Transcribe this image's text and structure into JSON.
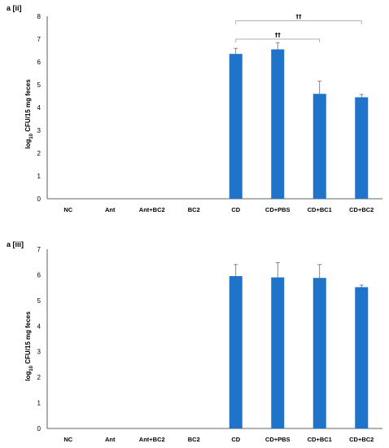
{
  "chart_data": [
    {
      "panel_label": "a [ii]",
      "type": "bar",
      "ylabel": "log10 CFU/15 mg feces",
      "ylabel_main": "log",
      "ylabel_sub": "10",
      "ylabel_rest": " CFU/15 mg feces",
      "ylim": [
        0,
        8
      ],
      "yticks": [
        "0",
        "1",
        "2",
        "3",
        "4",
        "5",
        "6",
        "7",
        "8"
      ],
      "categories": [
        "NC",
        "Ant",
        "Ant+BC2",
        "BC2",
        "CD",
        "CD+PBS",
        "CD+BC1",
        "CD+BC2"
      ],
      "values": [
        0,
        0,
        0,
        0,
        6.35,
        6.55,
        4.6,
        4.45
      ],
      "errors": [
        0,
        0,
        0,
        0,
        0.25,
        0.28,
        0.55,
        0.12
      ],
      "bar_color": "#1f73c8",
      "grid": false,
      "annotations": [
        {
          "text": "††",
          "from": "CD",
          "to": "CD+BC1",
          "at": 7.0
        },
        {
          "text": "††",
          "from": "CD",
          "to": "CD+BC2",
          "at": 7.8
        }
      ]
    },
    {
      "panel_label": "a [iii]",
      "type": "bar",
      "ylabel": "log10 CFU/15 mg feces",
      "ylabel_main": "log",
      "ylabel_sub": "10",
      "ylabel_rest": " CFU/15 mg feces",
      "ylim": [
        0,
        7
      ],
      "yticks": [
        "0",
        "1",
        "2",
        "3",
        "4",
        "5",
        "6",
        "7"
      ],
      "categories": [
        "NC",
        "Ant",
        "Ant+BC2",
        "BC2",
        "CD",
        "CD+PBS",
        "CD+BC1",
        "CD+BC2"
      ],
      "values": [
        0,
        0,
        0,
        0,
        5.95,
        5.9,
        5.88,
        5.52
      ],
      "errors": [
        0,
        0,
        0,
        0,
        0.45,
        0.58,
        0.52,
        0.08
      ],
      "bar_color": "#1f73c8",
      "grid": false,
      "annotations": []
    }
  ]
}
